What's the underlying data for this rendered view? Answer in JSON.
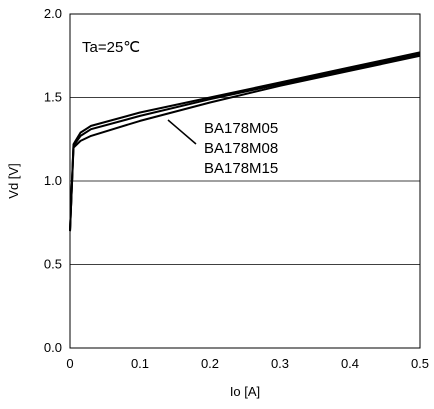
{
  "chart_data": {
    "type": "line",
    "title": "",
    "xlabel": "Io [A]",
    "ylabel": "Vd [V]",
    "xlim": [
      0,
      0.5
    ],
    "ylim": [
      0,
      2.0
    ],
    "xticks": [
      "0",
      "0.1",
      "0.2",
      "0.3",
      "0.4",
      "0.5"
    ],
    "yticks": [
      "0.0",
      "0.5",
      "1.0",
      "1.5",
      "2.0"
    ],
    "grid": "horizontal",
    "annotation": "Ta=25℃",
    "legend_placement": "center (labels with leader line)",
    "line_color": "#000000",
    "series": [
      {
        "name": "BA178M05",
        "x": [
          0,
          0.005,
          0.015,
          0.03,
          0.1,
          0.2,
          0.3,
          0.4,
          0.5
        ],
        "y": [
          0.7,
          1.22,
          1.29,
          1.33,
          1.41,
          1.5,
          1.59,
          1.68,
          1.77
        ]
      },
      {
        "name": "BA178M08",
        "x": [
          0,
          0.005,
          0.015,
          0.03,
          0.1,
          0.2,
          0.3,
          0.4,
          0.5
        ],
        "y": [
          0.7,
          1.21,
          1.27,
          1.31,
          1.39,
          1.49,
          1.58,
          1.67,
          1.76
        ]
      },
      {
        "name": "BA178M15",
        "x": [
          0,
          0.005,
          0.015,
          0.03,
          0.1,
          0.2,
          0.3,
          0.4,
          0.5
        ],
        "y": [
          0.7,
          1.2,
          1.24,
          1.27,
          1.36,
          1.47,
          1.57,
          1.66,
          1.75
        ]
      }
    ]
  }
}
